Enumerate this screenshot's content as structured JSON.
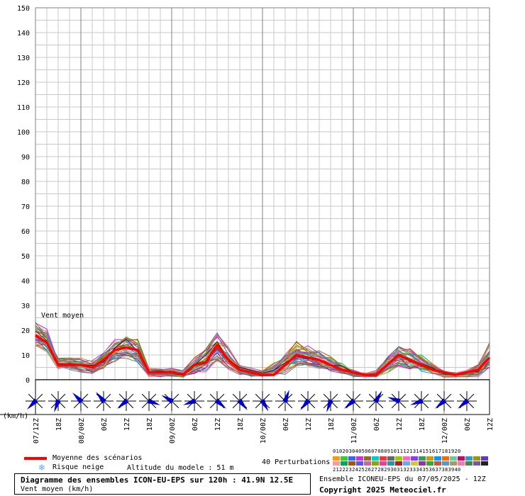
{
  "chart_data": {
    "type": "line",
    "ylabel": "(km/h)",
    "ylim": [
      0,
      150
    ],
    "yticks": [
      0,
      10,
      20,
      30,
      40,
      50,
      60,
      70,
      80,
      90,
      100,
      110,
      120,
      130,
      140,
      150
    ],
    "x_hours": [
      0,
      3,
      6,
      9,
      12,
      15,
      18,
      21,
      24,
      27,
      30,
      33,
      36,
      39,
      42,
      45,
      48,
      51,
      54,
      57,
      60,
      63,
      66,
      69,
      72,
      75,
      78,
      81,
      84,
      87,
      90,
      93,
      96,
      99,
      102,
      105,
      108,
      111,
      114,
      117,
      120
    ],
    "xtick_labels": [
      {
        "h": 0,
        "label": "07/12Z"
      },
      {
        "h": 6,
        "label": "18Z"
      },
      {
        "h": 12,
        "label": "08/00Z"
      },
      {
        "h": 18,
        "label": "06Z"
      },
      {
        "h": 24,
        "label": "12Z"
      },
      {
        "h": 30,
        "label": "18Z"
      },
      {
        "h": 36,
        "label": "09/00Z"
      },
      {
        "h": 42,
        "label": "06Z"
      },
      {
        "h": 48,
        "label": "12Z"
      },
      {
        "h": 54,
        "label": "18Z"
      },
      {
        "h": 60,
        "label": "10/00Z"
      },
      {
        "h": 66,
        "label": "06Z"
      },
      {
        "h": 72,
        "label": "12Z"
      },
      {
        "h": 78,
        "label": "18Z"
      },
      {
        "h": 84,
        "label": "11/00Z"
      },
      {
        "h": 90,
        "label": "06Z"
      },
      {
        "h": 96,
        "label": "12Z"
      },
      {
        "h": 102,
        "label": "18Z"
      },
      {
        "h": 108,
        "label": "12/00Z"
      },
      {
        "h": 114,
        "label": "06Z"
      },
      {
        "h": 120,
        "label": "12Z"
      }
    ],
    "day_boundaries_h": [
      12,
      36,
      60,
      84,
      108
    ],
    "annotation": "Vent moyen",
    "mean_series": {
      "name": "Moyenne des scénarios",
      "color": "#ff0000",
      "values": [
        18,
        15,
        6,
        6,
        6,
        5,
        8,
        12,
        13,
        12,
        3,
        3,
        3,
        2,
        6,
        7,
        14,
        8,
        4,
        3,
        2,
        2,
        6,
        10,
        9,
        8,
        6,
        4,
        3,
        2,
        2,
        6,
        10,
        8,
        6,
        4,
        3,
        2,
        3,
        4,
        9
      ]
    },
    "envelope": {
      "upper": [
        24,
        21,
        9,
        9,
        9,
        8,
        12,
        17,
        19,
        17,
        5,
        5,
        5,
        4,
        10,
        13,
        20,
        14,
        6,
        5,
        4,
        7,
        12,
        16,
        14,
        12,
        10,
        7,
        4,
        3,
        4,
        10,
        15,
        13,
        11,
        7,
        4,
        3,
        4,
        7,
        16
      ],
      "lower": [
        13,
        10,
        4,
        4,
        3,
        2,
        4,
        6,
        8,
        6,
        1,
        1,
        1,
        1,
        2,
        3,
        7,
        4,
        2,
        1,
        1,
        1,
        2,
        5,
        5,
        4,
        3,
        2,
        1,
        1,
        1,
        2,
        5,
        4,
        3,
        2,
        1,
        1,
        1,
        1,
        4
      ]
    },
    "perturbation_count": 40,
    "perturbation_colors": [
      "#ff9900",
      "#33cc33",
      "#3366ff",
      "#cc33cc",
      "#996633",
      "#00cccc",
      "#ff3333",
      "#666666",
      "#99cc00",
      "#ff66cc",
      "#9933ff",
      "#339966",
      "#cc9900",
      "#0099ff",
      "#ff6600",
      "#66cc99",
      "#cc0066",
      "#3399cc",
      "#999900",
      "#6633cc",
      "#ff9999",
      "#00aa55",
      "#aa5500",
      "#5555ff",
      "#cc6699",
      "#88aa00",
      "#ff3399",
      "#2299aa",
      "#aa2222",
      "#66aaff",
      "#cccc33",
      "#993399",
      "#33aa33",
      "#cc5533",
      "#5599cc",
      "#aa9966",
      "#ff77aa",
      "#448844",
      "#7755aa",
      "#222222"
    ],
    "wind_directions_deg": [
      225,
      200,
      315,
      320,
      230,
      110,
      300,
      250,
      130,
      140,
      150,
      20,
      220,
      200,
      230,
      30,
      290,
      250,
      230,
      230
    ],
    "wind_hours": [
      0,
      6,
      12,
      18,
      24,
      30,
      36,
      42,
      48,
      54,
      60,
      66,
      72,
      78,
      84,
      90,
      96,
      102,
      108,
      114
    ]
  },
  "legend": {
    "mean_label": "Moyenne des scénarios",
    "snow_label": "Risque neige",
    "altitude_label": "Altitude du modele : 51 m",
    "perturbations_label": "40 Perturbations",
    "numbers_row1": "0102030405060708091011121314151617181920",
    "numbers_row2": "2122232425262728293031323334353637383940",
    "title": "Diagramme des ensembles ICON-EU-EPS sur 120h : 41.9N 12.5E",
    "subtitle": "Vent moyen (km/h)",
    "run_info": "Ensemble ICONEU-EPS du 07/05/2025 - 12Z",
    "copyright": "Copyright 2025 Meteociel.fr"
  },
  "colors": {
    "mean": "#ff0000",
    "grid": "#c8c8c8",
    "day_line": "#808080",
    "arrow": "#0000cc",
    "snow": "#55aaee"
  }
}
